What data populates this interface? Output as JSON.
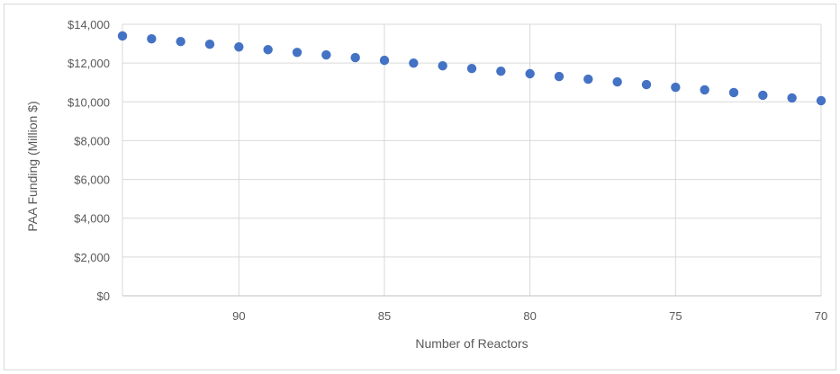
{
  "chart_data": {
    "type": "scatter",
    "title": "",
    "xlabel": "Number of Reactors",
    "ylabel": "PAA Funding (Million $)",
    "xlim": [
      94,
      70
    ],
    "x_reversed": true,
    "ylim": [
      0,
      14000
    ],
    "grid": true,
    "legend": "none",
    "x_ticks": [
      90,
      85,
      80,
      75,
      70
    ],
    "x_tick_labels": [
      "90",
      "85",
      "80",
      "75",
      "70"
    ],
    "y_ticks": [
      0,
      2000,
      4000,
      6000,
      8000,
      10000,
      12000,
      14000
    ],
    "y_tick_labels": [
      "$0",
      "$2,000",
      "$4,000",
      "$6,000",
      "$8,000",
      "$10,000",
      "$12,000",
      "$14,000"
    ],
    "marker_color": "#4472c4",
    "series": [
      {
        "x": [
          94,
          93,
          92,
          91,
          90,
          89,
          88,
          87,
          86,
          85,
          84,
          83,
          82,
          81,
          80,
          79,
          78,
          77,
          76,
          75,
          74,
          73,
          72,
          71,
          70
        ],
        "y": [
          13400,
          13250,
          13110,
          12970,
          12830,
          12690,
          12550,
          12420,
          12280,
          12140,
          12000,
          11860,
          11720,
          11580,
          11450,
          11310,
          11170,
          11030,
          10890,
          10750,
          10620,
          10480,
          10340,
          10200,
          10060
        ]
      }
    ]
  }
}
